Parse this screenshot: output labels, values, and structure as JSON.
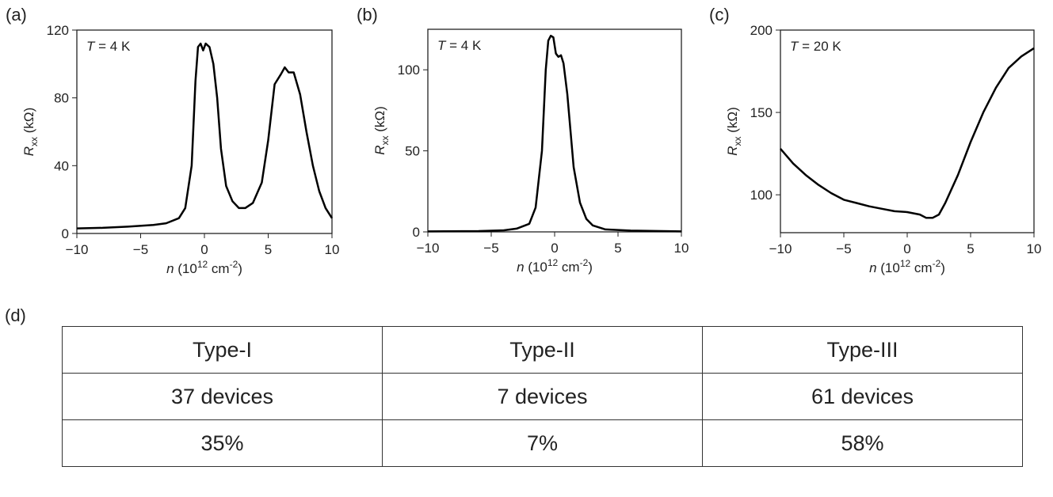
{
  "chart_data": [
    {
      "type": "line",
      "panel_label": "(a)",
      "annotation": [
        "T",
        " = 4 K"
      ],
      "xlabel": [
        "n",
        " (10",
        "12",
        " cm",
        "-2",
        ")"
      ],
      "ylabel": [
        "R",
        "xx",
        " (kΩ)"
      ],
      "xlim": [
        -10,
        10
      ],
      "ylim": [
        0,
        120
      ],
      "xticks": [
        {
          "value": -10,
          "label": "−10"
        },
        {
          "value": -5,
          "label": "−5"
        },
        0,
        5,
        10
      ],
      "yticks": [
        0,
        40,
        80,
        120
      ],
      "color": "#000000",
      "x": [
        -10,
        -8,
        -6,
        -4,
        -3,
        -2,
        -1.5,
        -1,
        -0.7,
        -0.5,
        -0.3,
        -0.1,
        0.1,
        0.4,
        0.7,
        1,
        1.3,
        1.7,
        2.2,
        2.7,
        3.2,
        3.8,
        4.5,
        5,
        5.5,
        6,
        6.3,
        6.6,
        7,
        7.5,
        8,
        8.5,
        9,
        9.5,
        10
      ],
      "values": [
        3,
        3.3,
        4,
        5,
        6,
        9,
        15,
        40,
        90,
        110,
        112,
        108,
        112,
        110,
        100,
        80,
        50,
        28,
        19,
        15,
        15,
        18,
        30,
        55,
        88,
        94,
        98,
        95,
        95,
        82,
        60,
        40,
        25,
        15,
        9
      ]
    },
    {
      "type": "line",
      "panel_label": "(b)",
      "annotation": [
        "T",
        " = 4 K"
      ],
      "xlabel": [
        "n",
        " (10",
        "12",
        " cm",
        "-2",
        ")"
      ],
      "ylabel": [
        "R",
        "xx",
        " (kΩ)"
      ],
      "xlim": [
        -10,
        10
      ],
      "ylim": [
        0,
        125
      ],
      "xticks": [
        {
          "value": -10,
          "label": "−10"
        },
        {
          "value": -5,
          "label": "−5"
        },
        0,
        5,
        10
      ],
      "yticks": [
        0,
        50,
        100
      ],
      "color": "#000000",
      "x": [
        -10,
        -6,
        -4,
        -3,
        -2,
        -1.5,
        -1,
        -0.7,
        -0.5,
        -0.3,
        -0.1,
        0.1,
        0.3,
        0.5,
        0.7,
        1,
        1.5,
        2,
        2.5,
        3,
        4,
        6,
        10
      ],
      "values": [
        0.3,
        0.5,
        1,
        2,
        5,
        15,
        50,
        100,
        118,
        121,
        120,
        110,
        108,
        109,
        104,
        85,
        40,
        18,
        8,
        4,
        1.5,
        0.8,
        0.3
      ]
    },
    {
      "type": "line",
      "panel_label": "(c)",
      "annotation": [
        "T",
        " = 20 K"
      ],
      "xlabel": [
        "n",
        " (10",
        "12",
        " cm",
        "-2",
        ")"
      ],
      "ylabel": [
        "R",
        "xx",
        " (kΩ)"
      ],
      "xlim": [
        -10,
        10
      ],
      "ylim": [
        77,
        200
      ],
      "xticks": [
        {
          "value": -10,
          "label": "−10"
        },
        {
          "value": -5,
          "label": "−5"
        },
        0,
        5,
        10
      ],
      "yticks": [
        100,
        150,
        200
      ],
      "color": "#000000",
      "x": [
        -10,
        -9,
        -8,
        -7,
        -6,
        -5,
        -4,
        -3,
        -2,
        -1,
        0,
        1,
        1.5,
        2,
        2.5,
        3,
        4,
        5,
        6,
        7,
        8,
        9,
        10
      ],
      "values": [
        128,
        119,
        112,
        106,
        101,
        97,
        95,
        93,
        91.5,
        90,
        89.5,
        88,
        86,
        86,
        88,
        95,
        112,
        132,
        150,
        165,
        177,
        184,
        189
      ]
    }
  ],
  "table": {
    "panel_label": "(d)",
    "rows": [
      [
        "Type-I",
        "Type-II",
        "Type-III"
      ],
      [
        "37 devices",
        "7 devices",
        "61 devices"
      ],
      [
        "35%",
        "7%",
        "58%"
      ]
    ]
  }
}
